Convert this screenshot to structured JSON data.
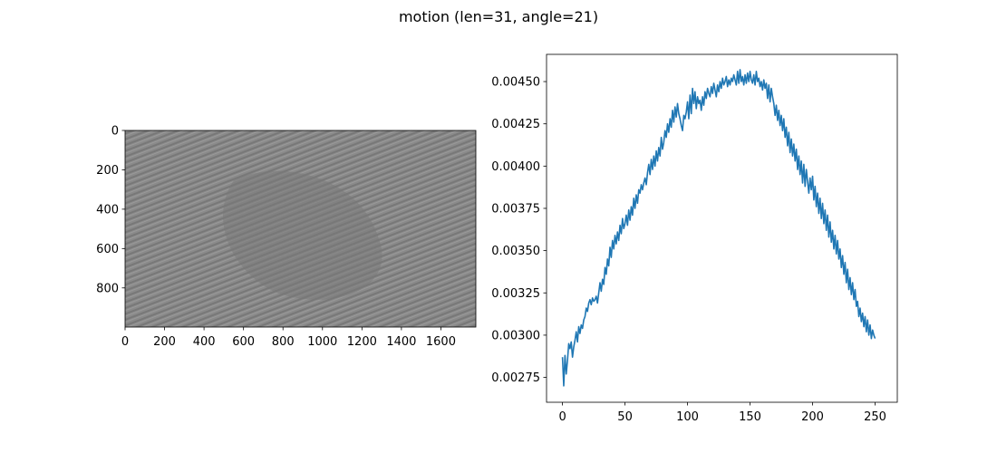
{
  "figure": {
    "suptitle": "motion (len=31, angle=21)"
  },
  "chart_data": [
    {
      "type": "heatmap",
      "title": "",
      "xlabel": "",
      "ylabel": "",
      "xlim": [
        0,
        1777
      ],
      "ylim": [
        999,
        0
      ],
      "xticks": [
        0,
        200,
        400,
        600,
        800,
        1000,
        1200,
        1400,
        1600
      ],
      "xtick_labels": [
        "0",
        "200",
        "400",
        "600",
        "800",
        "1000",
        "1200",
        "1400",
        "1600"
      ],
      "yticks": [
        0,
        200,
        400,
        600,
        800
      ],
      "ytick_labels": [
        "0",
        "200",
        "400",
        "600",
        "800"
      ],
      "colormap": "gray",
      "background_level": "#8a8a8a",
      "grid": false
    },
    {
      "type": "line",
      "title": "",
      "xlabel": "",
      "ylabel": "",
      "xlim": [
        -12.75,
        267.75
      ],
      "ylim": [
        0.002603,
        0.004661
      ],
      "xticks": [
        0,
        50,
        100,
        150,
        200,
        250
      ],
      "xtick_labels": [
        "0",
        "50",
        "100",
        "150",
        "200",
        "250"
      ],
      "yticks": [
        0.00275,
        0.003,
        0.00325,
        0.0035,
        0.00375,
        0.004,
        0.00425,
        0.0045
      ],
      "ytick_labels": [
        "0.00275",
        "0.00300",
        "0.00325",
        "0.00350",
        "0.00375",
        "0.00400",
        "0.00425",
        "0.00450"
      ],
      "grid": false,
      "color": "#1f77b4",
      "series": [
        {
          "x_start": 0,
          "x_step": 1,
          "values": [
            0.00287,
            0.0027,
            0.00288,
            0.00277,
            0.00285,
            0.00295,
            0.00292,
            0.00296,
            0.00287,
            0.00293,
            0.00297,
            0.00302,
            0.00296,
            0.00305,
            0.00301,
            0.00306,
            0.00304,
            0.00309,
            0.00311,
            0.00316,
            0.00314,
            0.00319,
            0.00321,
            0.00318,
            0.00322,
            0.0032,
            0.00321,
            0.00323,
            0.00319,
            0.00325,
            0.00331,
            0.00326,
            0.00333,
            0.0033,
            0.0034,
            0.00336,
            0.00345,
            0.00341,
            0.00352,
            0.00346,
            0.00356,
            0.00351,
            0.00359,
            0.00354,
            0.00361,
            0.00356,
            0.00365,
            0.0036,
            0.00369,
            0.00363,
            0.00366,
            0.00371,
            0.00365,
            0.00374,
            0.00368,
            0.00376,
            0.00371,
            0.00381,
            0.00375,
            0.00383,
            0.00378,
            0.00386,
            0.00384,
            0.00389,
            0.00386,
            0.0039,
            0.00393,
            0.00389,
            0.00396,
            0.00401,
            0.00395,
            0.00404,
            0.00398,
            0.00406,
            0.004,
            0.00409,
            0.00403,
            0.00411,
            0.00406,
            0.00417,
            0.0041,
            0.00414,
            0.00421,
            0.00417,
            0.00425,
            0.0042,
            0.00428,
            0.00423,
            0.00433,
            0.00426,
            0.00435,
            0.00429,
            0.00437,
            0.00431,
            0.00428,
            0.00424,
            0.00421,
            0.0043,
            0.00428,
            0.00432,
            0.00438,
            0.00428,
            0.00442,
            0.00431,
            0.00446,
            0.00437,
            0.00444,
            0.00434,
            0.00441,
            0.00437,
            0.00439,
            0.00433,
            0.00441,
            0.00436,
            0.00444,
            0.0044,
            0.00446,
            0.00443,
            0.00441,
            0.00447,
            0.00443,
            0.00449,
            0.00445,
            0.00441,
            0.00448,
            0.00444,
            0.0045,
            0.00446,
            0.00452,
            0.00448,
            0.0045,
            0.00453,
            0.00447,
            0.00451,
            0.00448,
            0.00452,
            0.0045,
            0.00454,
            0.00451,
            0.00448,
            0.00456,
            0.00449,
            0.00457,
            0.0045,
            0.00453,
            0.00448,
            0.00454,
            0.00449,
            0.00455,
            0.0045,
            0.00456,
            0.00451,
            0.00449,
            0.00454,
            0.00448,
            0.00456,
            0.0045,
            0.00452,
            0.00447,
            0.0045,
            0.00445,
            0.00451,
            0.00446,
            0.00449,
            0.0044,
            0.00448,
            0.00438,
            0.00446,
            0.00441,
            0.00437,
            0.0043,
            0.00436,
            0.00427,
            0.00433,
            0.00424,
            0.0043,
            0.00421,
            0.00428,
            0.00417,
            0.00423,
            0.00412,
            0.0042,
            0.00408,
            0.00416,
            0.00406,
            0.00413,
            0.00403,
            0.0041,
            0.00398,
            0.00406,
            0.00395,
            0.00403,
            0.0039,
            0.00401,
            0.00388,
            0.00398,
            0.00391,
            0.00384,
            0.00393,
            0.00386,
            0.00394,
            0.0038,
            0.00388,
            0.00376,
            0.00384,
            0.00372,
            0.00381,
            0.00369,
            0.00378,
            0.00366,
            0.00374,
            0.00362,
            0.00371,
            0.00358,
            0.00367,
            0.00355,
            0.00362,
            0.00351,
            0.00359,
            0.00348,
            0.00356,
            0.00345,
            0.00351,
            0.0034,
            0.00347,
            0.00336,
            0.00343,
            0.00331,
            0.00339,
            0.00327,
            0.00334,
            0.00324,
            0.00331,
            0.00321,
            0.00327,
            0.00317,
            0.0032,
            0.00311,
            0.00316,
            0.00308,
            0.00313,
            0.00305,
            0.00311,
            0.00302,
            0.00309,
            0.003,
            0.00306,
            0.00298,
            0.00303,
            0.003,
            0.00298
          ]
        }
      ]
    }
  ]
}
